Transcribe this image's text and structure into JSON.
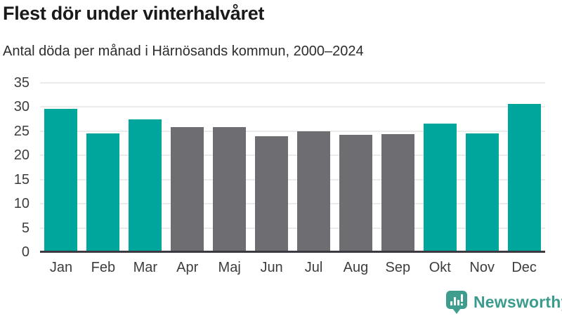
{
  "header": {
    "title": "Flest dör under vinterhalvåret",
    "subtitle": "Antal döda per månad i Härnösands kommun, 2000–2024"
  },
  "chart_data": {
    "type": "bar",
    "title": "Flest dör under vinterhalvåret",
    "subtitle": "Antal döda per månad i Härnösands kommun, 2000–2024",
    "categories": [
      "Jan",
      "Feb",
      "Mar",
      "Apr",
      "Maj",
      "Jun",
      "Jul",
      "Aug",
      "Sep",
      "Okt",
      "Nov",
      "Dec"
    ],
    "values": [
      29.6,
      24.5,
      27.4,
      25.8,
      25.8,
      24.0,
      25.0,
      24.3,
      24.4,
      26.6,
      24.5,
      30.6
    ],
    "winter_months": [
      "Jan",
      "Feb",
      "Mar",
      "Okt",
      "Nov",
      "Dec"
    ],
    "colors": {
      "winter": "#00a69c",
      "summer": "#6e6d72"
    },
    "xlabel": "",
    "ylabel": "",
    "ylim": [
      0,
      35
    ],
    "yticks": [
      0,
      5,
      10,
      15,
      20,
      25,
      30,
      35
    ],
    "grid": true,
    "legend": false,
    "axis_color": "#3a3a40",
    "gridline_color": "#ebebeb"
  },
  "footer": {
    "brand": "Newsworthy",
    "brand_color": "#3b9b8c"
  }
}
